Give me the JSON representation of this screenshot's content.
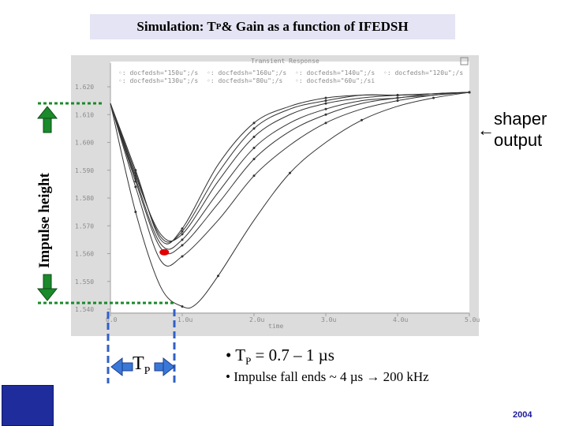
{
  "slide": {
    "title_main": "Simulation: T",
    "title_sub": "P",
    "title_rest": " & Gain as a function of IFEDSH",
    "y_axis_label": "Impulse height",
    "annotation_arrow": "←",
    "annotation_line1": "shaper",
    "annotation_line2": "output",
    "tp_label_main": "T",
    "tp_label_sub": "P",
    "bullet1_prefix": "• T",
    "bullet1_sub": "P",
    "bullet1_rest": " = 0.7 – 1 µs",
    "bullet2": "• Impulse fall ends ~ 4 µs  → 200 kHz",
    "year": "2004"
  },
  "colors": {
    "title_bg": "#e4e4f4",
    "arrow_green": "#1a8a2a",
    "dotted_green": "#1a8a2a",
    "dashed_blue": "#3060c8",
    "blue_box": "#1f2c9c",
    "red_marker": "#e00000"
  },
  "chart_data": {
    "type": "line",
    "title": "Transient Response",
    "xlabel": "time",
    "ylabel": "",
    "xlim": [
      0,
      5.0
    ],
    "ylim": [
      1.54,
      1.62
    ],
    "x_ticks": [
      "0.0",
      "1.0u",
      "2.0u",
      "3.0u",
      "4.0u",
      "5.0u"
    ],
    "y_ticks": [
      "1.540",
      "1.550",
      "1.560",
      "1.570",
      "1.580",
      "1.590",
      "1.600",
      "1.610",
      "1.620"
    ],
    "legend": [
      "docfedsh=\"150u\";/s",
      "docfedsh=\"160u\";/s",
      "docfedsh=\"140u\";/s",
      "docfedsh=\"120u\";/s",
      "docfedsh=\"130u\";/s",
      "docfedsh=\"80u\";/s",
      "docfedsh=\"60u\";/si"
    ],
    "series": [
      {
        "name": "s1",
        "x": [
          0,
          0.35,
          0.7,
          1.0,
          1.5,
          2.0,
          2.5,
          3.0,
          3.5,
          4.0,
          4.5,
          5.0
        ],
        "y": [
          1.614,
          1.59,
          1.565,
          1.569,
          1.592,
          1.607,
          1.613,
          1.616,
          1.617,
          1.617,
          1.6175,
          1.618
        ]
      },
      {
        "name": "s2",
        "x": [
          0,
          0.35,
          0.7,
          1.0,
          1.5,
          2.0,
          2.5,
          3.0,
          3.5,
          4.0,
          4.5,
          5.0
        ],
        "y": [
          1.614,
          1.589,
          1.566,
          1.568,
          1.589,
          1.605,
          1.612,
          1.615,
          1.617,
          1.617,
          1.6175,
          1.618
        ]
      },
      {
        "name": "s3",
        "x": [
          0,
          0.35,
          0.7,
          1.0,
          1.5,
          2.0,
          2.5,
          3.0,
          3.5,
          4.0,
          4.5,
          5.0
        ],
        "y": [
          1.614,
          1.588,
          1.567,
          1.567,
          1.586,
          1.602,
          1.61,
          1.614,
          1.616,
          1.617,
          1.6175,
          1.618
        ]
      },
      {
        "name": "s4",
        "x": [
          0,
          0.35,
          0.7,
          1.0,
          1.5,
          2.0,
          2.5,
          3.0,
          3.5,
          4.0,
          4.5,
          5.0
        ],
        "y": [
          1.614,
          1.587,
          1.5635,
          1.565,
          1.582,
          1.598,
          1.607,
          1.612,
          1.615,
          1.616,
          1.6175,
          1.618
        ]
      },
      {
        "name": "s5",
        "x": [
          0,
          0.35,
          0.7,
          1.0,
          1.5,
          2.0,
          2.5,
          3.0,
          3.5,
          4.0,
          4.5,
          5.0
        ],
        "y": [
          1.614,
          1.586,
          1.562,
          1.563,
          1.578,
          1.594,
          1.604,
          1.61,
          1.614,
          1.616,
          1.617,
          1.618
        ]
      },
      {
        "name": "s6",
        "x": [
          0,
          0.35,
          0.7,
          1.0,
          1.5,
          2.0,
          2.5,
          3.0,
          3.5,
          4.0,
          4.5,
          5.0
        ],
        "y": [
          1.614,
          1.584,
          1.5575,
          1.559,
          1.572,
          1.588,
          1.599,
          1.607,
          1.612,
          1.615,
          1.617,
          1.618
        ]
      },
      {
        "name": "s7",
        "x": [
          0,
          0.35,
          0.7,
          1.0,
          1.2,
          1.5,
          2.0,
          2.5,
          3.0,
          3.5,
          4.0,
          4.5,
          5.0
        ],
        "y": [
          1.614,
          1.575,
          1.548,
          1.541,
          1.542,
          1.552,
          1.572,
          1.589,
          1.6,
          1.608,
          1.613,
          1.616,
          1.618
        ]
      }
    ],
    "highlight_point": {
      "x": 0.75,
      "y": 1.5605
    }
  }
}
